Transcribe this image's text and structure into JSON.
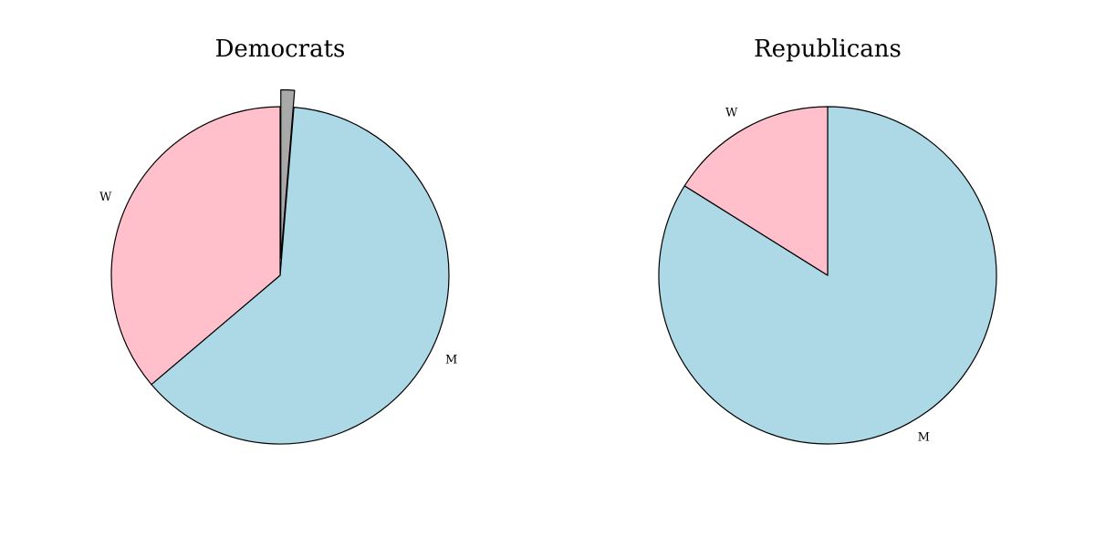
{
  "chart_data": [
    {
      "type": "pie",
      "title": "Democrats",
      "categories": [
        null,
        "M",
        "W"
      ],
      "values": [
        1.3,
        62.5,
        36.2
      ],
      "colors": [
        "#a9a9a9",
        "#add8e6",
        "#ffc0cb"
      ],
      "explode": [
        0.1,
        0,
        0
      ]
    },
    {
      "type": "pie",
      "title": "Republicans",
      "categories": [
        "M",
        "W"
      ],
      "values": [
        83.9,
        16.1
      ],
      "colors": [
        "#add8e6",
        "#ffc0cb"
      ],
      "explode": [
        0,
        0
      ]
    }
  ]
}
